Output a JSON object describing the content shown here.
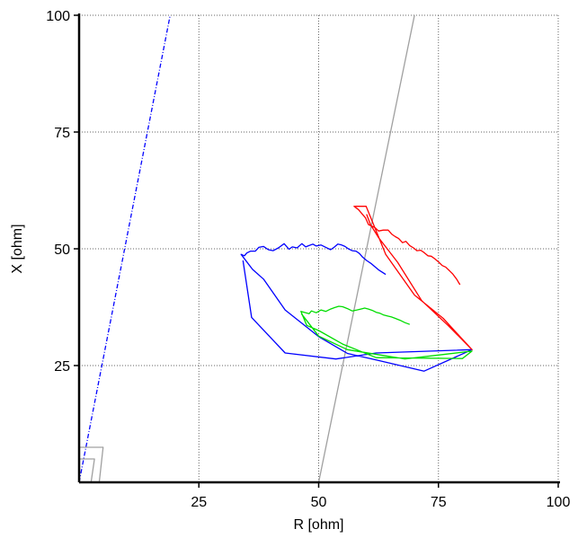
{
  "chart_data": {
    "type": "line",
    "title": "",
    "xlabel": "R [ohm]",
    "ylabel": "X [ohm]",
    "xlim": [
      0,
      100
    ],
    "ylim": [
      0,
      100
    ],
    "xticks": [
      25,
      50,
      75,
      100
    ],
    "yticks": [
      25,
      50,
      75,
      100
    ],
    "grid": true,
    "series": [
      {
        "color": "#0000ff",
        "style": "dash-dot",
        "x": [
          0,
          19
        ],
        "y": [
          0,
          100
        ]
      },
      {
        "color": "#a0a0a0",
        "style": "solid",
        "x": [
          50,
          70
        ],
        "y": [
          0,
          100
        ]
      },
      {
        "color": "#a0a0a0",
        "style": "solid",
        "x": [
          0,
          5,
          4.2,
          0
        ],
        "y": [
          7.5,
          7.5,
          0,
          0
        ]
      },
      {
        "color": "#a0a0a0",
        "style": "solid",
        "x": [
          0,
          3.2,
          2.5
        ],
        "y": [
          5,
          5,
          0
        ]
      },
      {
        "color": "#0000ff",
        "style": "solid",
        "x": [
          64,
          62.5,
          61,
          60,
          59.2,
          58.5,
          57.8,
          57,
          56.2,
          55.5,
          54.8,
          54,
          53.2,
          52.5,
          51.5,
          50.5,
          49.5,
          48.8,
          48,
          47.3,
          46.5,
          45.5,
          44.5,
          43.8,
          42.8,
          41.6,
          40.5,
          39.5,
          38.5,
          37.5,
          36.8,
          35.8,
          35,
          34.5,
          33.8,
          36.2,
          38.5,
          43,
          50,
          56,
          62,
          72,
          82,
          62,
          53.6,
          43,
          36,
          34.2
        ],
        "y": [
          44.5,
          45.5,
          46.8,
          47.5,
          48.2,
          49,
          49.5,
          49.6,
          50,
          50.5,
          50.8,
          51,
          50.3,
          49.8,
          50.3,
          50.8,
          50.6,
          51,
          50.7,
          50.4,
          51.1,
          50.2,
          50.4,
          49.9,
          51.1,
          50.2,
          49.6,
          49.8,
          50.5,
          50.3,
          49.5,
          49.5,
          49.1,
          48.5,
          48.8,
          45.6,
          43.5,
          36.9,
          31.2,
          27.6,
          26.2,
          23.8,
          28.4,
          27.7,
          26.4,
          27.7,
          35.3,
          47.5
        ]
      },
      {
        "color": "#00dd00",
        "style": "solid",
        "x": [
          69,
          68,
          67,
          66,
          65.2,
          64.4,
          63.6,
          62.8,
          62,
          61.2,
          60.4,
          59.6,
          58.8,
          58,
          57,
          56,
          55,
          54.2,
          53.3,
          52.5,
          51.5,
          50.5,
          49.5,
          48.5,
          48,
          46.3,
          47.5,
          50,
          55,
          62,
          71,
          80,
          82,
          68,
          56,
          50,
          46.4
        ],
        "y": [
          33.8,
          34.2,
          34.7,
          35.1,
          35.4,
          35.6,
          35.8,
          36.2,
          36.4,
          36.8,
          37.1,
          37.3,
          37.1,
          36.9,
          36.7,
          37.2,
          37.6,
          37.7,
          37.4,
          37.1,
          36.6,
          36.9,
          36.3,
          36.7,
          36.1,
          36.6,
          33.6,
          32.5,
          29.6,
          26.7,
          26.6,
          26.5,
          28.1,
          26.4,
          28.4,
          31.3,
          36.1
        ]
      },
      {
        "color": "#ff0000",
        "style": "solid",
        "x": [
          79.5,
          78.8,
          78,
          77.3,
          76.5,
          75.8,
          75,
          74.3,
          73.5,
          72.8,
          72,
          71.3,
          70.5,
          69.8,
          69,
          68.2,
          67.5,
          66.7,
          66,
          65.3,
          64.5,
          63.5,
          62.5,
          61.8,
          61,
          60.4,
          59.8,
          58.3,
          57.4,
          59.9,
          64,
          70,
          76,
          82,
          77,
          71.5,
          66.5,
          62.5,
          60.8,
          60
        ],
        "y": [
          42.3,
          43.5,
          44.6,
          45.3,
          46.1,
          46.4,
          47.2,
          47.8,
          48.4,
          48.5,
          49.2,
          49.7,
          49.6,
          50.2,
          50.7,
          51.6,
          51.3,
          52.2,
          52.6,
          53.1,
          54,
          54,
          53.8,
          54.5,
          54.9,
          55.2,
          56.6,
          58.4,
          59.1,
          59.1,
          48.8,
          40.1,
          35.1,
          28.4,
          33.6,
          38.9,
          47.1,
          52.4,
          55.2,
          57.4
        ]
      }
    ]
  }
}
